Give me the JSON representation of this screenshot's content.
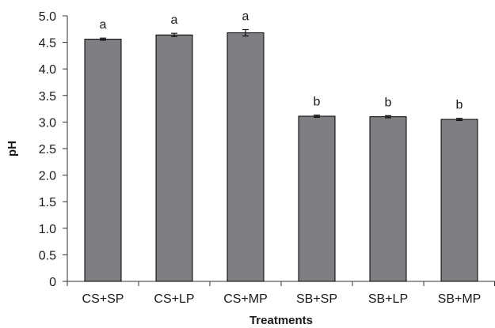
{
  "chart_data": {
    "type": "bar",
    "title": "",
    "xlabel": "Treatments",
    "ylabel": "pH",
    "ylim": [
      0,
      5.0
    ],
    "yticks": [
      "0",
      "0.5",
      "1.0",
      "1.5",
      "2.0",
      "2.5",
      "3.0",
      "3.5",
      "4.0",
      "4.5",
      "5.0"
    ],
    "ytick_values": [
      0,
      0.5,
      1.0,
      1.5,
      2.0,
      2.5,
      3.0,
      3.5,
      4.0,
      4.5,
      5.0
    ],
    "categories": [
      "CS+SP",
      "CS+LP",
      "CS+MP",
      "SB+SP",
      "SB+LP",
      "SB+MP"
    ],
    "values": [
      4.56,
      4.64,
      4.68,
      3.11,
      3.1,
      3.05
    ],
    "errors": [
      0.02,
      0.03,
      0.06,
      0.02,
      0.02,
      0.02
    ],
    "letters": [
      "a",
      "a",
      "a",
      "b",
      "b",
      "b"
    ],
    "grid": false,
    "legend": "none",
    "bar_color": "#7f7f83"
  }
}
